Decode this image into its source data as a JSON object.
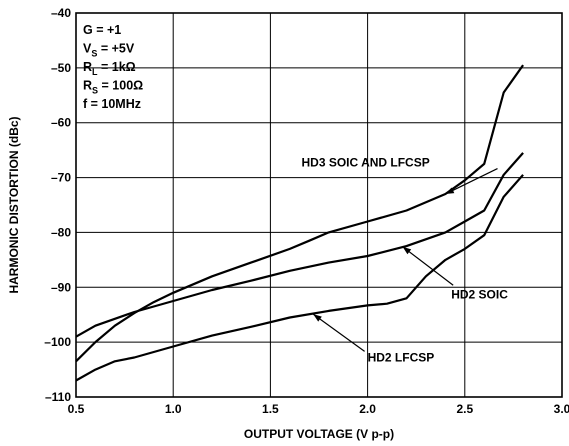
{
  "chart_data": {
    "type": "line",
    "title": "",
    "xlabel": "OUTPUT VOLTAGE (V p-p)",
    "ylabel": "HARMONIC DISTORTION (dBc)",
    "xlim": [
      0.5,
      3.0
    ],
    "ylim": [
      -110,
      -40
    ],
    "xticks": [
      0.5,
      1.0,
      1.5,
      2.0,
      2.5,
      3.0
    ],
    "xtick_labels": [
      "0.5",
      "1.0",
      "1.5",
      "2.0",
      "2.5",
      "3.0"
    ],
    "yticks": [
      -110,
      -100,
      -90,
      -80,
      -70,
      -60,
      -50,
      -40
    ],
    "ytick_labels": [
      "–110",
      "–100",
      "–90",
      "–80",
      "–70",
      "–60",
      "–50",
      "–40"
    ],
    "grid": true,
    "conditions": [
      {
        "main": "G = +1",
        "sub": "",
        "rest": ""
      },
      {
        "main": "V",
        "sub": "S",
        "rest": " = +5V"
      },
      {
        "main": "R",
        "sub": "L",
        "rest": " = 1kΩ"
      },
      {
        "main": "R",
        "sub": "S",
        "rest": " = 100Ω"
      },
      {
        "main": "f = 10MHz",
        "sub": "",
        "rest": ""
      }
    ],
    "series": [
      {
        "name": "HD3 SOIC AND LFCSP",
        "x": [
          0.5,
          0.6,
          0.7,
          0.8,
          0.9,
          1.0,
          1.2,
          1.4,
          1.6,
          1.7,
          1.8,
          2.0,
          2.2,
          2.4,
          2.5,
          2.6,
          2.7,
          2.8
        ],
        "y": [
          -103.5,
          -100.0,
          -97.0,
          -94.7,
          -92.7,
          -91.0,
          -88.0,
          -85.5,
          -83.0,
          -81.5,
          -80.0,
          -78.0,
          -76.0,
          -73.0,
          -70.5,
          -67.5,
          -54.5,
          -49.5
        ]
      },
      {
        "name": "HD2 SOIC",
        "x": [
          0.5,
          0.6,
          0.8,
          1.0,
          1.2,
          1.4,
          1.6,
          1.8,
          2.0,
          2.2,
          2.4,
          2.5,
          2.6,
          2.7,
          2.8
        ],
        "y": [
          -99.0,
          -97.0,
          -94.5,
          -92.5,
          -90.5,
          -88.8,
          -87.0,
          -85.5,
          -84.3,
          -82.5,
          -80.0,
          -78.0,
          -76.0,
          -69.5,
          -65.5
        ]
      },
      {
        "name": "HD2 LFCSP",
        "x": [
          0.5,
          0.6,
          0.7,
          0.8,
          1.0,
          1.2,
          1.4,
          1.6,
          1.8,
          2.0,
          2.1,
          2.2,
          2.3,
          2.4,
          2.5,
          2.6,
          2.7,
          2.8
        ],
        "y": [
          -107.0,
          -105.0,
          -103.5,
          -102.8,
          -100.8,
          -98.8,
          -97.2,
          -95.5,
          -94.3,
          -93.3,
          -93.0,
          -92.0,
          -88.0,
          -85.0,
          -83.0,
          -80.5,
          -73.5,
          -69.5
        ]
      }
    ],
    "annotations": [
      {
        "text": "HD3 SOIC AND LFCSP",
        "series": 0,
        "point_x": 2.4,
        "point_y": -73.0,
        "label_x": 1.66,
        "label_y": -68.0
      },
      {
        "text": "HD2 SOIC",
        "series": 1,
        "point_x": 2.18,
        "point_y": -82.6,
        "label_x": 2.43,
        "label_y": -92.0
      },
      {
        "text": "HD2 LFCSP",
        "series": 2,
        "point_x": 1.72,
        "point_y": -94.9,
        "label_x": 2.0,
        "label_y": -103.5
      }
    ]
  }
}
